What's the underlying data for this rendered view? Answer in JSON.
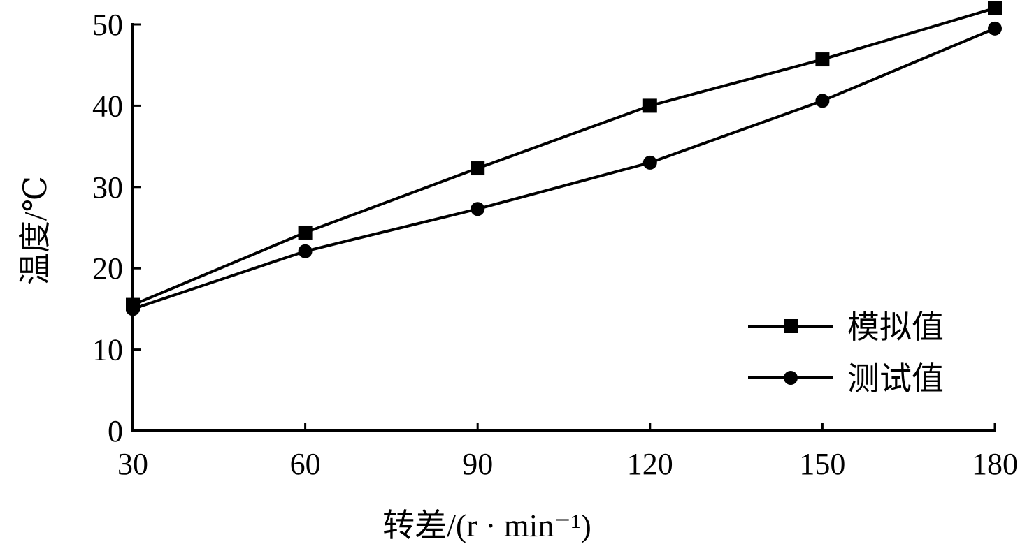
{
  "chart_data": {
    "type": "line",
    "x": [
      30,
      60,
      90,
      120,
      150,
      180
    ],
    "series": [
      {
        "name": "模拟值",
        "marker": "square",
        "values": [
          15.5,
          24.4,
          32.3,
          40.0,
          45.7,
          52.0
        ]
      },
      {
        "name": "测试值",
        "marker": "circle",
        "values": [
          15.0,
          22.1,
          27.3,
          33.0,
          40.6,
          49.5
        ]
      }
    ],
    "xlabel": "转差/(r · min⁻¹)",
    "ylabel": "温度/℃",
    "xlim": [
      30,
      180
    ],
    "ylim": [
      0,
      50
    ],
    "xticks": [
      "30",
      "60",
      "90",
      "120",
      "150",
      "180"
    ],
    "yticks": [
      "0",
      "10",
      "20",
      "30",
      "40",
      "50"
    ],
    "grid": false,
    "legend_position": "bottom-right",
    "line_color": "#000000"
  }
}
